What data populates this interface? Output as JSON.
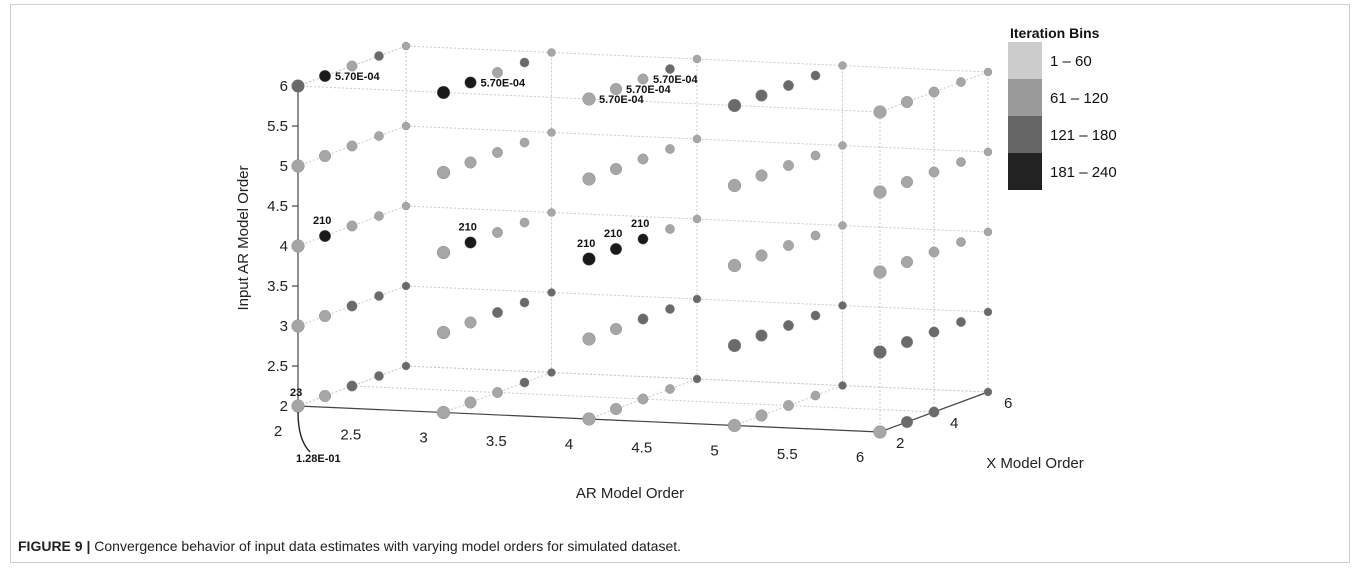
{
  "caption": {
    "label": "FIGURE 9 |",
    "text": " Convergence behavior of input data estimates with varying model orders for simulated dataset."
  },
  "chart_data": {
    "type": "scatter",
    "projection": "3d",
    "xlabel": "AR Model Order",
    "ylabel": "X Model Order",
    "zlabel": "Input AR Model Order",
    "x_ticks": [
      "2",
      "2.5",
      "3",
      "3.5",
      "4",
      "4.5",
      "5",
      "5.5",
      "6"
    ],
    "y_ticks": [
      "2",
      "4",
      "6"
    ],
    "z_ticks": [
      "2",
      "2.5",
      "3",
      "3.5",
      "4",
      "4.5",
      "5",
      "5.5",
      "6"
    ],
    "xlim": [
      2,
      6
    ],
    "ylim": [
      2,
      6
    ],
    "zlim": [
      2,
      6
    ],
    "grid": true,
    "legend": {
      "title": "Iteration Bins",
      "position": "top-right",
      "entries": [
        {
          "label": "1 – 60",
          "color": "#cccccc"
        },
        {
          "label": "61 – 120",
          "color": "#9a9a9a"
        },
        {
          "label": "121 – 180",
          "color": "#666666"
        },
        {
          "label": "181 – 240",
          "color": "#222222"
        }
      ]
    },
    "x_values": [
      2,
      3,
      4,
      5,
      6
    ],
    "y_values": [
      2,
      3,
      4,
      5,
      6
    ],
    "z_values": [
      2,
      3,
      4,
      5,
      6
    ],
    "points": [
      {
        "x": 2,
        "y": 2,
        "z": 6,
        "bin": 3
      },
      {
        "x": 2,
        "y": 3,
        "z": 6,
        "bin": 4
      },
      {
        "x": 2,
        "y": 4,
        "z": 6,
        "bin": 2
      },
      {
        "x": 2,
        "y": 5,
        "z": 6,
        "bin": 3
      },
      {
        "x": 2,
        "y": 6,
        "z": 6,
        "bin": 2
      },
      {
        "x": 3,
        "y": 2,
        "z": 6,
        "bin": 4
      },
      {
        "x": 3,
        "y": 3,
        "z": 6,
        "bin": 4
      },
      {
        "x": 3,
        "y": 4,
        "z": 6,
        "bin": 2
      },
      {
        "x": 3,
        "y": 5,
        "z": 6,
        "bin": 3
      },
      {
        "x": 3,
        "y": 6,
        "z": 6,
        "bin": 2
      },
      {
        "x": 4,
        "y": 2,
        "z": 6,
        "bin": 2
      },
      {
        "x": 4,
        "y": 3,
        "z": 6,
        "bin": 2
      },
      {
        "x": 4,
        "y": 4,
        "z": 6,
        "bin": 2
      },
      {
        "x": 4,
        "y": 5,
        "z": 6,
        "bin": 3
      },
      {
        "x": 4,
        "y": 6,
        "z": 6,
        "bin": 2
      },
      {
        "x": 5,
        "y": 2,
        "z": 6,
        "bin": 3
      },
      {
        "x": 5,
        "y": 3,
        "z": 6,
        "bin": 3
      },
      {
        "x": 5,
        "y": 4,
        "z": 6,
        "bin": 3
      },
      {
        "x": 5,
        "y": 5,
        "z": 6,
        "bin": 3
      },
      {
        "x": 5,
        "y": 6,
        "z": 6,
        "bin": 2
      },
      {
        "x": 6,
        "y": 2,
        "z": 6,
        "bin": 2
      },
      {
        "x": 6,
        "y": 3,
        "z": 6,
        "bin": 2
      },
      {
        "x": 6,
        "y": 4,
        "z": 6,
        "bin": 2
      },
      {
        "x": 6,
        "y": 5,
        "z": 6,
        "bin": 2
      },
      {
        "x": 6,
        "y": 6,
        "z": 6,
        "bin": 2
      },
      {
        "x": 2,
        "y": 2,
        "z": 5,
        "bin": 2
      },
      {
        "x": 2,
        "y": 3,
        "z": 5,
        "bin": 2
      },
      {
        "x": 2,
        "y": 4,
        "z": 5,
        "bin": 2
      },
      {
        "x": 2,
        "y": 5,
        "z": 5,
        "bin": 2
      },
      {
        "x": 2,
        "y": 6,
        "z": 5,
        "bin": 2
      },
      {
        "x": 3,
        "y": 2,
        "z": 5,
        "bin": 2
      },
      {
        "x": 3,
        "y": 3,
        "z": 5,
        "bin": 2
      },
      {
        "x": 3,
        "y": 4,
        "z": 5,
        "bin": 2
      },
      {
        "x": 3,
        "y": 5,
        "z": 5,
        "bin": 2
      },
      {
        "x": 3,
        "y": 6,
        "z": 5,
        "bin": 2
      },
      {
        "x": 4,
        "y": 2,
        "z": 5,
        "bin": 2
      },
      {
        "x": 4,
        "y": 3,
        "z": 5,
        "bin": 2
      },
      {
        "x": 4,
        "y": 4,
        "z": 5,
        "bin": 2
      },
      {
        "x": 4,
        "y": 5,
        "z": 5,
        "bin": 2
      },
      {
        "x": 4,
        "y": 6,
        "z": 5,
        "bin": 2
      },
      {
        "x": 5,
        "y": 2,
        "z": 5,
        "bin": 2
      },
      {
        "x": 5,
        "y": 3,
        "z": 5,
        "bin": 2
      },
      {
        "x": 5,
        "y": 4,
        "z": 5,
        "bin": 2
      },
      {
        "x": 5,
        "y": 5,
        "z": 5,
        "bin": 2
      },
      {
        "x": 5,
        "y": 6,
        "z": 5,
        "bin": 2
      },
      {
        "x": 6,
        "y": 2,
        "z": 5,
        "bin": 2
      },
      {
        "x": 6,
        "y": 3,
        "z": 5,
        "bin": 2
      },
      {
        "x": 6,
        "y": 4,
        "z": 5,
        "bin": 2
      },
      {
        "x": 6,
        "y": 5,
        "z": 5,
        "bin": 2
      },
      {
        "x": 6,
        "y": 6,
        "z": 5,
        "bin": 2
      },
      {
        "x": 2,
        "y": 2,
        "z": 4,
        "bin": 2
      },
      {
        "x": 2,
        "y": 3,
        "z": 4,
        "bin": 4
      },
      {
        "x": 2,
        "y": 4,
        "z": 4,
        "bin": 2
      },
      {
        "x": 2,
        "y": 5,
        "z": 4,
        "bin": 2
      },
      {
        "x": 2,
        "y": 6,
        "z": 4,
        "bin": 2
      },
      {
        "x": 3,
        "y": 2,
        "z": 4,
        "bin": 2
      },
      {
        "x": 3,
        "y": 3,
        "z": 4,
        "bin": 4
      },
      {
        "x": 3,
        "y": 4,
        "z": 4,
        "bin": 2
      },
      {
        "x": 3,
        "y": 5,
        "z": 4,
        "bin": 2
      },
      {
        "x": 3,
        "y": 6,
        "z": 4,
        "bin": 2
      },
      {
        "x": 4,
        "y": 2,
        "z": 4,
        "bin": 4
      },
      {
        "x": 4,
        "y": 3,
        "z": 4,
        "bin": 4
      },
      {
        "x": 4,
        "y": 4,
        "z": 4,
        "bin": 4
      },
      {
        "x": 4,
        "y": 5,
        "z": 4,
        "bin": 2
      },
      {
        "x": 4,
        "y": 6,
        "z": 4,
        "bin": 2
      },
      {
        "x": 5,
        "y": 2,
        "z": 4,
        "bin": 2
      },
      {
        "x": 5,
        "y": 3,
        "z": 4,
        "bin": 2
      },
      {
        "x": 5,
        "y": 4,
        "z": 4,
        "bin": 2
      },
      {
        "x": 5,
        "y": 5,
        "z": 4,
        "bin": 2
      },
      {
        "x": 5,
        "y": 6,
        "z": 4,
        "bin": 2
      },
      {
        "x": 6,
        "y": 2,
        "z": 4,
        "bin": 2
      },
      {
        "x": 6,
        "y": 3,
        "z": 4,
        "bin": 2
      },
      {
        "x": 6,
        "y": 4,
        "z": 4,
        "bin": 2
      },
      {
        "x": 6,
        "y": 5,
        "z": 4,
        "bin": 2
      },
      {
        "x": 6,
        "y": 6,
        "z": 4,
        "bin": 2
      },
      {
        "x": 2,
        "y": 2,
        "z": 3,
        "bin": 2
      },
      {
        "x": 2,
        "y": 3,
        "z": 3,
        "bin": 2
      },
      {
        "x": 2,
        "y": 4,
        "z": 3,
        "bin": 3
      },
      {
        "x": 2,
        "y": 5,
        "z": 3,
        "bin": 3
      },
      {
        "x": 2,
        "y": 6,
        "z": 3,
        "bin": 3
      },
      {
        "x": 3,
        "y": 2,
        "z": 3,
        "bin": 2
      },
      {
        "x": 3,
        "y": 3,
        "z": 3,
        "bin": 2
      },
      {
        "x": 3,
        "y": 4,
        "z": 3,
        "bin": 3
      },
      {
        "x": 3,
        "y": 5,
        "z": 3,
        "bin": 3
      },
      {
        "x": 3,
        "y": 6,
        "z": 3,
        "bin": 3
      },
      {
        "x": 4,
        "y": 2,
        "z": 3,
        "bin": 2
      },
      {
        "x": 4,
        "y": 3,
        "z": 3,
        "bin": 2
      },
      {
        "x": 4,
        "y": 4,
        "z": 3,
        "bin": 3
      },
      {
        "x": 4,
        "y": 5,
        "z": 3,
        "bin": 3
      },
      {
        "x": 4,
        "y": 6,
        "z": 3,
        "bin": 3
      },
      {
        "x": 5,
        "y": 2,
        "z": 3,
        "bin": 3
      },
      {
        "x": 5,
        "y": 3,
        "z": 3,
        "bin": 3
      },
      {
        "x": 5,
        "y": 4,
        "z": 3,
        "bin": 3
      },
      {
        "x": 5,
        "y": 5,
        "z": 3,
        "bin": 3
      },
      {
        "x": 5,
        "y": 6,
        "z": 3,
        "bin": 3
      },
      {
        "x": 6,
        "y": 2,
        "z": 3,
        "bin": 3
      },
      {
        "x": 6,
        "y": 3,
        "z": 3,
        "bin": 3
      },
      {
        "x": 6,
        "y": 4,
        "z": 3,
        "bin": 3
      },
      {
        "x": 6,
        "y": 5,
        "z": 3,
        "bin": 3
      },
      {
        "x": 6,
        "y": 6,
        "z": 3,
        "bin": 3
      },
      {
        "x": 2,
        "y": 2,
        "z": 2,
        "bin": 2
      },
      {
        "x": 2,
        "y": 3,
        "z": 2,
        "bin": 2
      },
      {
        "x": 2,
        "y": 4,
        "z": 2,
        "bin": 3
      },
      {
        "x": 2,
        "y": 5,
        "z": 2,
        "bin": 3
      },
      {
        "x": 2,
        "y": 6,
        "z": 2,
        "bin": 3
      },
      {
        "x": 3,
        "y": 2,
        "z": 2,
        "bin": 2
      },
      {
        "x": 3,
        "y": 3,
        "z": 2,
        "bin": 2
      },
      {
        "x": 3,
        "y": 4,
        "z": 2,
        "bin": 2
      },
      {
        "x": 3,
        "y": 5,
        "z": 2,
        "bin": 3
      },
      {
        "x": 3,
        "y": 6,
        "z": 2,
        "bin": 3
      },
      {
        "x": 4,
        "y": 2,
        "z": 2,
        "bin": 2
      },
      {
        "x": 4,
        "y": 3,
        "z": 2,
        "bin": 2
      },
      {
        "x": 4,
        "y": 4,
        "z": 2,
        "bin": 2
      },
      {
        "x": 4,
        "y": 5,
        "z": 2,
        "bin": 2
      },
      {
        "x": 4,
        "y": 6,
        "z": 2,
        "bin": 3
      },
      {
        "x": 5,
        "y": 2,
        "z": 2,
        "bin": 2
      },
      {
        "x": 5,
        "y": 3,
        "z": 2,
        "bin": 2
      },
      {
        "x": 5,
        "y": 4,
        "z": 2,
        "bin": 2
      },
      {
        "x": 5,
        "y": 5,
        "z": 2,
        "bin": 2
      },
      {
        "x": 5,
        "y": 6,
        "z": 2,
        "bin": 3
      },
      {
        "x": 6,
        "y": 2,
        "z": 2,
        "bin": 2
      },
      {
        "x": 6,
        "y": 3,
        "z": 2,
        "bin": 3
      },
      {
        "x": 6,
        "y": 4,
        "z": 2,
        "bin": 3
      },
      {
        "x": 6,
        "y": 5,
        "z": 3,
        "bin": 3
      },
      {
        "x": 6,
        "y": 6,
        "z": 2,
        "bin": 3
      }
    ],
    "annotations": [
      {
        "text": "5.70E-04",
        "x": 2,
        "y": 3,
        "z": 6
      },
      {
        "text": "5.70E-04",
        "x": 3,
        "y": 3,
        "z": 6
      },
      {
        "text": "5.70E-04",
        "x": 4,
        "y": 4,
        "z": 6
      },
      {
        "text": "5.70E-04",
        "x": 4,
        "y": 3,
        "z": 6
      },
      {
        "text": "5.70E-04",
        "x": 4,
        "y": 2,
        "z": 6
      },
      {
        "text": "210",
        "x": 2,
        "y": 3,
        "z": 4
      },
      {
        "text": "210",
        "x": 3,
        "y": 3,
        "z": 4
      },
      {
        "text": "210",
        "x": 4,
        "y": 2,
        "z": 4
      },
      {
        "text": "210",
        "x": 4,
        "y": 3,
        "z": 4
      },
      {
        "text": "210",
        "x": 4,
        "y": 4,
        "z": 4
      },
      {
        "text": "23",
        "x": 2,
        "y": 2,
        "z": 2
      },
      {
        "text": "1.28E-01",
        "x": 2,
        "y": 2,
        "z": 2
      }
    ]
  }
}
